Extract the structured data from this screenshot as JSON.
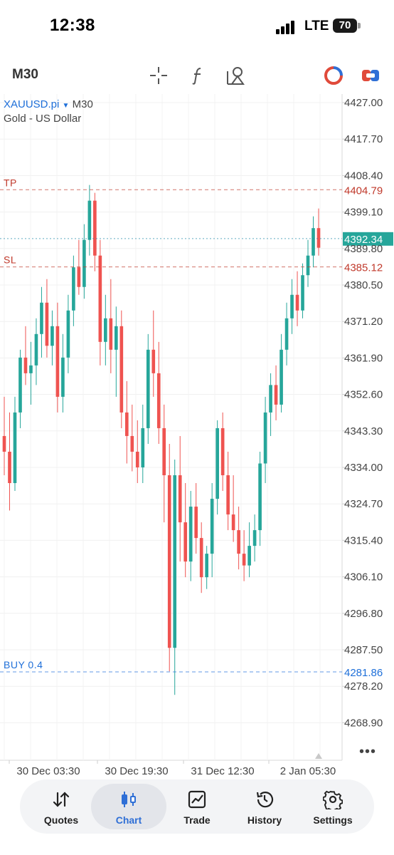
{
  "status": {
    "time": "12:38",
    "network": "LTE",
    "battery": "70"
  },
  "toolbar": {
    "timeframe": "M30"
  },
  "chart": {
    "symbol": "XAUUSD.pi",
    "timeframe": "M30",
    "description": "Gold - US Dollar",
    "colors": {
      "bull": "#26a69a",
      "bear": "#ef5350",
      "tp_sl": "#c0392b",
      "bid": "#1e88a8",
      "order": "#1e6fd9"
    }
  },
  "chart_data": {
    "type": "candlestick",
    "y_ticks": [
      "4427.00",
      "4417.70",
      "4408.40",
      "4399.10",
      "4389.80",
      "4380.50",
      "4371.20",
      "4361.90",
      "4352.60",
      "4343.30",
      "4334.00",
      "4324.70",
      "4315.40",
      "4306.10",
      "4296.80",
      "4287.50",
      "4278.20",
      "4268.90"
    ],
    "x_ticks": [
      "30 Dec 03:30",
      "30 Dec 19:30",
      "31 Dec 12:30",
      "2 Jan 05:30"
    ],
    "ylim": [
      4263.5,
      4428.8
    ],
    "levels": [
      {
        "label": "TP",
        "price": "4404.79",
        "value": 4404.79,
        "kind": "tp"
      },
      {
        "label": "SL",
        "price": "4385.12",
        "value": 4385.12,
        "kind": "sl"
      },
      {
        "label": "",
        "price": "4392.34",
        "value": 4392.34,
        "kind": "bid"
      },
      {
        "label": "BUY 0.4",
        "price": "4281.86",
        "value": 4281.86,
        "kind": "order"
      }
    ],
    "candles": [
      [
        4342,
        4352,
        4332,
        4338
      ],
      [
        4338,
        4348,
        4323,
        4330
      ],
      [
        4330,
        4352,
        4328,
        4348
      ],
      [
        4348,
        4364,
        4344,
        4362
      ],
      [
        4362,
        4370,
        4355,
        4358
      ],
      [
        4358,
        4366,
        4350,
        4360
      ],
      [
        4360,
        4372,
        4355,
        4368
      ],
      [
        4368,
        4380,
        4362,
        4376
      ],
      [
        4376,
        4382,
        4362,
        4365
      ],
      [
        4365,
        4374,
        4360,
        4370
      ],
      [
        4370,
        4376,
        4348,
        4352
      ],
      [
        4352,
        4368,
        4348,
        4362
      ],
      [
        4362,
        4378,
        4358,
        4374
      ],
      [
        4374,
        4388,
        4370,
        4385
      ],
      [
        4385,
        4392,
        4378,
        4380
      ],
      [
        4380,
        4396,
        4377,
        4392
      ],
      [
        4392,
        4406,
        4388,
        4402
      ],
      [
        4402,
        4404,
        4384,
        4388
      ],
      [
        4388,
        4392,
        4360,
        4366
      ],
      [
        4366,
        4378,
        4360,
        4372
      ],
      [
        4372,
        4382,
        4358,
        4364
      ],
      [
        4364,
        4375,
        4352,
        4370
      ],
      [
        4370,
        4374,
        4344,
        4348
      ],
      [
        4348,
        4356,
        4335,
        4342
      ],
      [
        4342,
        4350,
        4333,
        4338
      ],
      [
        4338,
        4346,
        4330,
        4334
      ],
      [
        4334,
        4350,
        4330,
        4344
      ],
      [
        4344,
        4368,
        4340,
        4364
      ],
      [
        4364,
        4374,
        4352,
        4358
      ],
      [
        4358,
        4366,
        4340,
        4344
      ],
      [
        4344,
        4350,
        4320,
        4332
      ],
      [
        4332,
        4340,
        4282,
        4288
      ],
      [
        4288,
        4336,
        4276,
        4332
      ],
      [
        4332,
        4342,
        4310,
        4320
      ],
      [
        4320,
        4330,
        4306,
        4310
      ],
      [
        4310,
        4328,
        4305,
        4324
      ],
      [
        4324,
        4330,
        4312,
        4316
      ],
      [
        4316,
        4320,
        4302,
        4306
      ],
      [
        4306,
        4314,
        4303,
        4312
      ],
      [
        4312,
        4330,
        4306,
        4326
      ],
      [
        4326,
        4346,
        4322,
        4344
      ],
      [
        4344,
        4348,
        4328,
        4332
      ],
      [
        4332,
        4338,
        4318,
        4322
      ],
      [
        4322,
        4332,
        4315,
        4318
      ],
      [
        4318,
        4324,
        4308,
        4312
      ],
      [
        4312,
        4318,
        4305,
        4309
      ],
      [
        4309,
        4320,
        4306,
        4314
      ],
      [
        4314,
        4322,
        4310,
        4318
      ],
      [
        4318,
        4338,
        4314,
        4335
      ],
      [
        4335,
        4352,
        4330,
        4348
      ],
      [
        4348,
        4358,
        4342,
        4355
      ],
      [
        4355,
        4360,
        4346,
        4350
      ],
      [
        4350,
        4368,
        4348,
        4364
      ],
      [
        4364,
        4376,
        4360,
        4372
      ],
      [
        4372,
        4382,
        4368,
        4378
      ],
      [
        4378,
        4384,
        4370,
        4374
      ],
      [
        4374,
        4386,
        4372,
        4383
      ],
      [
        4383,
        4392,
        4380,
        4388
      ],
      [
        4388,
        4398,
        4385,
        4395
      ],
      [
        4395,
        4400,
        4388,
        4390
      ]
    ]
  },
  "tabs": [
    {
      "id": "quotes",
      "label": "Quotes"
    },
    {
      "id": "chart",
      "label": "Chart",
      "active": true
    },
    {
      "id": "trade",
      "label": "Trade"
    },
    {
      "id": "history",
      "label": "History"
    },
    {
      "id": "settings",
      "label": "Settings"
    }
  ]
}
